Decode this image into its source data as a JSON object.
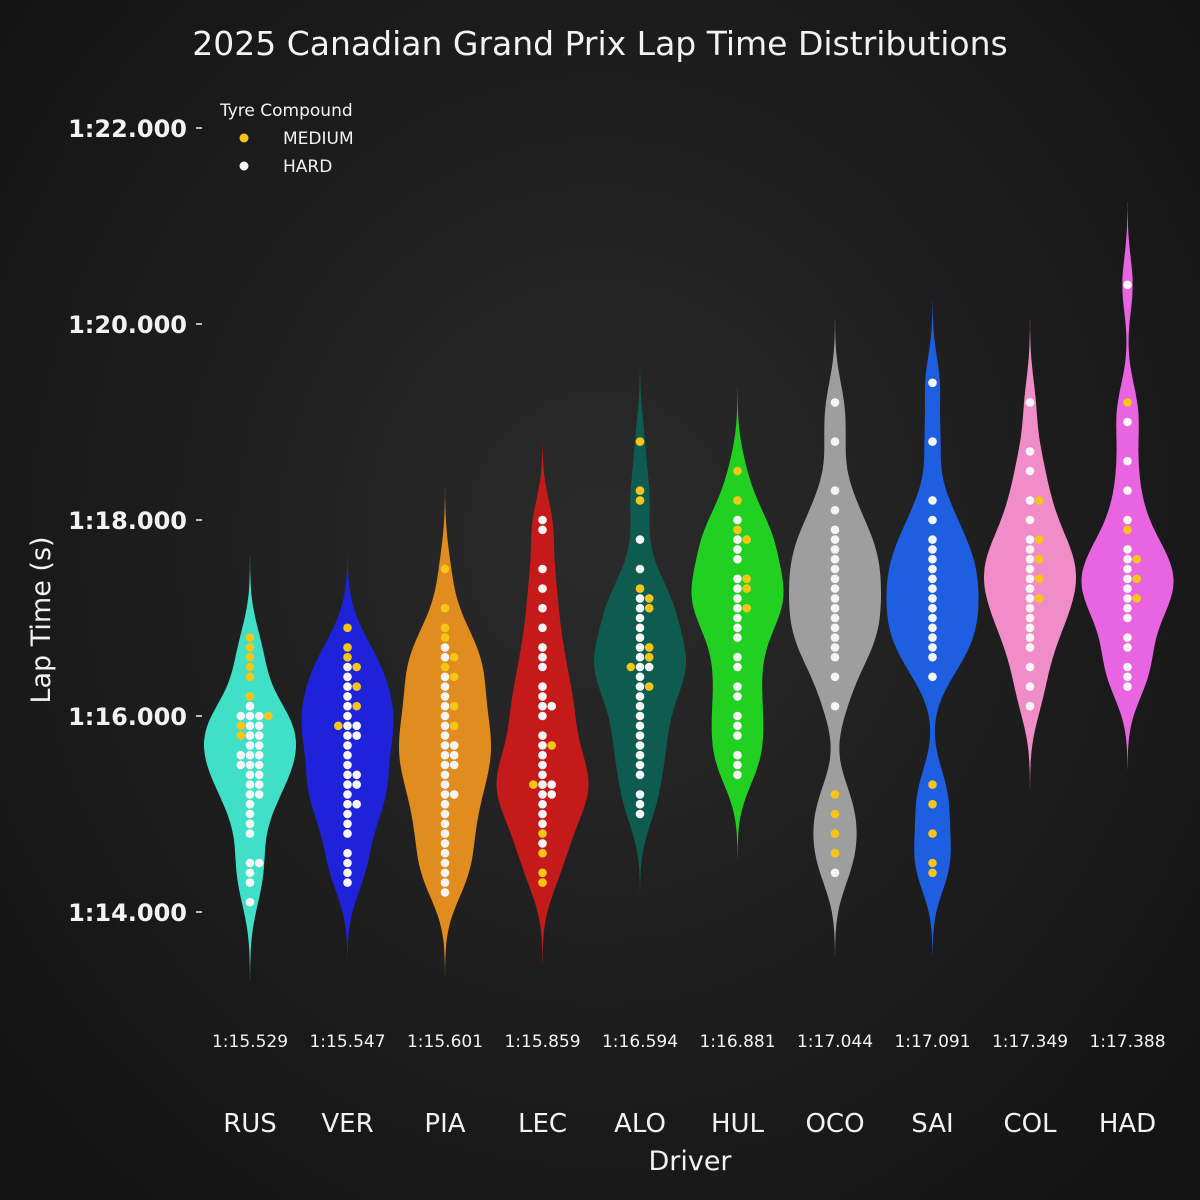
{
  "chart_data": {
    "type": "violin",
    "title": "2025 Canadian Grand Prix Lap Time Distributions",
    "xlabel": "Driver",
    "ylabel": "Lap Time (s)",
    "ylim": [
      73.4,
      82.8
    ],
    "yticks": [
      74,
      76,
      78,
      80,
      82
    ],
    "ytick_labels": [
      "1:14.000",
      "1:16.000",
      "1:18.000",
      "1:20.000",
      "1:22.000"
    ],
    "legend": {
      "title": "Tyre Compound",
      "placement": "top-left",
      "entries": [
        {
          "label": "MEDIUM",
          "color": "#f5c518"
        },
        {
          "label": "HARD",
          "color": "#f5f5f5"
        }
      ]
    },
    "categories": [
      "RUS",
      "VER",
      "PIA",
      "LEC",
      "ALO",
      "HUL",
      "OCO",
      "SAI",
      "COL",
      "HAD"
    ],
    "median_labels": [
      "1:15.529",
      "1:15.547",
      "1:15.601",
      "1:15.859",
      "1:16.594",
      "1:16.881",
      "1:17.044",
      "1:17.091",
      "1:17.349",
      "1:17.388"
    ],
    "medians": [
      75.529,
      75.547,
      75.601,
      75.859,
      76.594,
      76.881,
      77.044,
      77.091,
      77.349,
      77.388
    ],
    "violin_colors": [
      "#40e0c8",
      "#1e22d8",
      "#e08c1e",
      "#c41a1a",
      "#0e5c50",
      "#22d022",
      "#9e9e9e",
      "#1e5ee0",
      "#f08cc8",
      "#e864e0"
    ],
    "series": [
      {
        "category": "RUS",
        "hard": [
          74.1,
          74.3,
          74.4,
          74.5,
          74.5,
          74.8,
          74.9,
          75.0,
          75.1,
          75.2,
          75.2,
          75.3,
          75.3,
          75.4,
          75.4,
          75.5,
          75.5,
          75.5,
          75.6,
          75.6,
          75.6,
          75.7,
          75.7,
          75.8,
          75.8,
          75.9,
          75.9,
          76.0,
          76.0,
          76.0,
          76.1
        ],
        "medium": [
          75.8,
          75.9,
          76.0,
          76.2,
          76.4,
          76.5,
          76.6,
          76.7,
          76.8
        ]
      },
      {
        "category": "VER",
        "hard": [
          74.3,
          74.4,
          74.5,
          74.6,
          74.8,
          74.9,
          75.0,
          75.1,
          75.1,
          75.2,
          75.3,
          75.3,
          75.4,
          75.4,
          75.5,
          75.6,
          75.7,
          75.8,
          75.8,
          75.9,
          75.9,
          76.0,
          76.1,
          76.2,
          76.3,
          76.4,
          76.5
        ],
        "medium": [
          75.9,
          76.1,
          76.3,
          76.5,
          76.6,
          76.7,
          76.9
        ]
      },
      {
        "category": "PIA",
        "hard": [
          74.2,
          74.3,
          74.4,
          74.5,
          74.6,
          74.7,
          74.8,
          74.9,
          75.0,
          75.1,
          75.2,
          75.2,
          75.3,
          75.4,
          75.5,
          75.5,
          75.6,
          75.6,
          75.7,
          75.7,
          75.8,
          75.9,
          76.0,
          76.1,
          76.2,
          76.3,
          76.4,
          76.6,
          76.7
        ],
        "medium": [
          75.9,
          76.1,
          76.4,
          76.5,
          76.6,
          76.8,
          76.9,
          77.1,
          77.5
        ]
      },
      {
        "category": "LEC",
        "hard": [
          74.7,
          74.9,
          75.0,
          75.1,
          75.2,
          75.2,
          75.3,
          75.3,
          75.4,
          75.5,
          75.6,
          75.7,
          75.8,
          76.0,
          76.1,
          76.1,
          76.2,
          76.3,
          76.5,
          76.6,
          76.7,
          76.9,
          77.1,
          77.3,
          77.5,
          77.9,
          78.0
        ],
        "medium": [
          74.3,
          74.4,
          74.6,
          74.8,
          75.3,
          75.7
        ]
      },
      {
        "category": "ALO",
        "hard": [
          75.0,
          75.1,
          75.2,
          75.4,
          75.5,
          75.6,
          75.7,
          75.8,
          75.9,
          76.0,
          76.1,
          76.2,
          76.3,
          76.4,
          76.5,
          76.5,
          76.6,
          76.7,
          76.8,
          76.9,
          77.0,
          77.1,
          77.2,
          77.5,
          77.8
        ],
        "medium": [
          76.3,
          76.5,
          76.6,
          76.7,
          77.1,
          77.2,
          77.3,
          78.2,
          78.3,
          78.8
        ]
      },
      {
        "category": "HUL",
        "hard": [
          75.4,
          75.5,
          75.6,
          75.8,
          75.9,
          76.0,
          76.2,
          76.3,
          76.5,
          76.6,
          76.8,
          76.9,
          77.0,
          77.1,
          77.2,
          77.3,
          77.4,
          77.6,
          77.7,
          77.8,
          78.0
        ],
        "medium": [
          77.1,
          77.3,
          77.4,
          77.8,
          77.9,
          78.2,
          78.5
        ]
      },
      {
        "category": "OCO",
        "hard": [
          74.4,
          76.1,
          76.4,
          76.6,
          76.7,
          76.8,
          76.9,
          77.0,
          77.1,
          77.2,
          77.3,
          77.4,
          77.5,
          77.6,
          77.7,
          77.8,
          77.9,
          78.1,
          78.3,
          78.8,
          79.2
        ],
        "medium": [
          74.6,
          74.8,
          75.0,
          75.2
        ]
      },
      {
        "category": "SAI",
        "hard": [
          76.4,
          76.6,
          76.7,
          76.8,
          76.9,
          77.0,
          77.1,
          77.2,
          77.3,
          77.4,
          77.5,
          77.6,
          77.7,
          77.8,
          78.0,
          78.2,
          78.8,
          79.4
        ],
        "medium": [
          74.4,
          74.5,
          74.8,
          75.1,
          75.3
        ]
      },
      {
        "category": "COL",
        "hard": [
          76.1,
          76.3,
          76.5,
          76.7,
          76.8,
          76.9,
          77.0,
          77.1,
          77.2,
          77.3,
          77.4,
          77.5,
          77.6,
          77.7,
          77.8,
          78.0,
          78.2,
          78.5,
          78.7,
          79.2
        ],
        "medium": [
          77.2,
          77.4,
          77.6,
          77.8,
          78.2
        ]
      },
      {
        "category": "HAD",
        "hard": [
          76.3,
          76.4,
          76.5,
          76.7,
          76.8,
          77.0,
          77.1,
          77.2,
          77.3,
          77.4,
          77.5,
          77.6,
          77.7,
          78.0,
          78.3,
          78.6,
          79.0,
          80.4
        ],
        "medium": [
          77.2,
          77.4,
          77.6,
          77.9,
          79.2
        ]
      }
    ]
  }
}
